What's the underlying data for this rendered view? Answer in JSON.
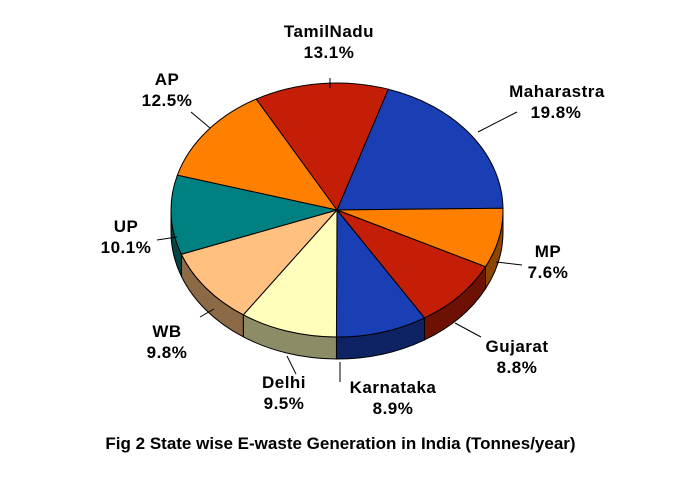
{
  "chart_data": {
    "type": "pie",
    "style": "3d",
    "title": "Fig 2 State wise E-waste Generation in India (Tonnes/year)",
    "slices": [
      {
        "label": "Maharastra",
        "value": 19.8,
        "display": "19.8%",
        "color": "#1a3fb5"
      },
      {
        "label": "MP",
        "value": 7.6,
        "display": "7.6%",
        "color": "#ff8000"
      },
      {
        "label": "Gujarat",
        "value": 8.8,
        "display": "8.8%",
        "color": "#c41e06"
      },
      {
        "label": "Karnataka",
        "value": 8.9,
        "display": "8.9%",
        "color": "#1a3fb5"
      },
      {
        "label": "Delhi",
        "value": 9.5,
        "display": "9.5%",
        "color": "#ffffbb"
      },
      {
        "label": "WB",
        "value": 9.8,
        "display": "9.8%",
        "color": "#ffc080"
      },
      {
        "label": "UP",
        "value": 10.1,
        "display": "10.1%",
        "color": "#008080"
      },
      {
        "label": "AP",
        "value": 12.5,
        "display": "12.5%",
        "color": "#ff8000"
      },
      {
        "label": "TamilNadu",
        "value": 13.1,
        "display": "13.1%",
        "color": "#c41e06"
      }
    ]
  }
}
